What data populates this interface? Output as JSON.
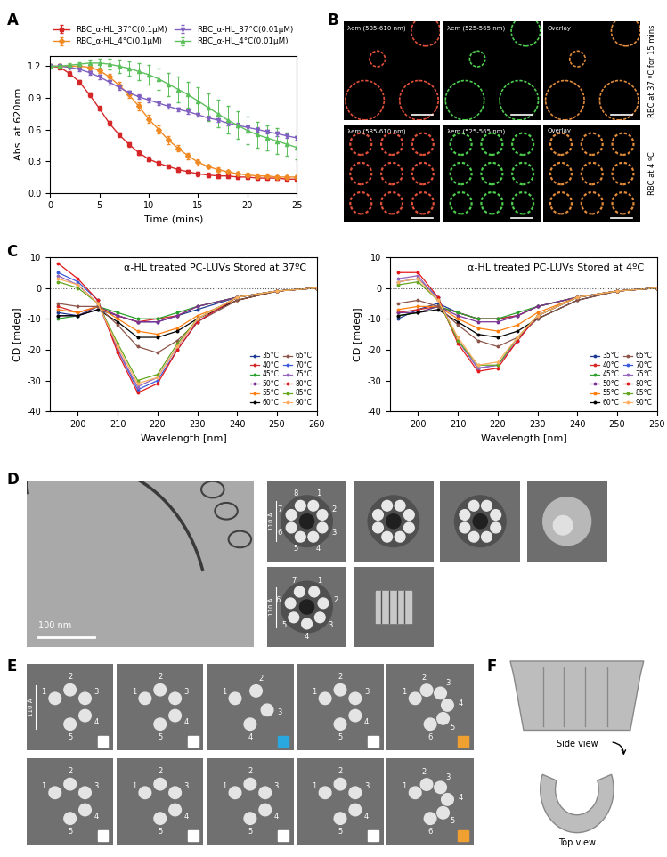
{
  "panel_labels": [
    "A",
    "B",
    "C",
    "D",
    "E",
    "F"
  ],
  "chart_data": [
    {
      "type": "line",
      "x_label": "Time (mins)",
      "y_label": "Abs. at 620nm",
      "x": [
        0,
        1,
        2,
        3,
        4,
        5,
        6,
        7,
        8,
        9,
        10,
        11,
        12,
        13,
        14,
        15,
        16,
        17,
        18,
        19,
        20,
        21,
        22,
        23,
        24,
        25
      ],
      "xlim": [
        0,
        25
      ],
      "xticks": [
        0,
        5,
        10,
        15,
        20,
        25
      ],
      "ylim": [
        0,
        1.3
      ],
      "yticks": [
        {
          "value": 0.0,
          "label": "0.0"
        },
        {
          "value": 0.3,
          "label": "0.3"
        },
        {
          "value": 0.6,
          "label": "0.6"
        },
        {
          "value": 0.9,
          "label": "0.9"
        },
        {
          "value": 1.2,
          "label": "1.2"
        }
      ],
      "legend": "upper center",
      "series": [
        {
          "name": "RBC_α-HL_37°C(0.1μM)",
          "color": "#d62728",
          "marker": "square",
          "values": [
            1.2,
            1.19,
            1.13,
            1.05,
            0.93,
            0.8,
            0.66,
            0.55,
            0.46,
            0.38,
            0.32,
            0.28,
            0.25,
            0.22,
            0.2,
            0.18,
            0.17,
            0.16,
            0.16,
            0.15,
            0.15,
            0.14,
            0.14,
            0.14,
            0.13,
            0.13
          ],
          "errors": [
            0.01,
            0.01,
            0.02,
            0.02,
            0.02,
            0.02,
            0.02,
            0.02,
            0.02,
            0.02,
            0.02,
            0.02,
            0.02,
            0.02,
            0.02,
            0.02,
            0.02,
            0.02,
            0.02,
            0.02,
            0.02,
            0.02,
            0.02,
            0.02,
            0.02,
            0.02
          ]
        },
        {
          "name": "RBC_α-HL_4°C(0.1μM)",
          "color": "#f08a24",
          "marker": "diamond",
          "values": [
            1.2,
            1.2,
            1.2,
            1.2,
            1.19,
            1.16,
            1.1,
            1.02,
            0.93,
            0.82,
            0.7,
            0.6,
            0.5,
            0.42,
            0.35,
            0.29,
            0.25,
            0.22,
            0.2,
            0.18,
            0.17,
            0.16,
            0.16,
            0.15,
            0.15,
            0.15
          ],
          "errors": [
            0.01,
            0.01,
            0.01,
            0.01,
            0.02,
            0.02,
            0.03,
            0.03,
            0.03,
            0.04,
            0.04,
            0.04,
            0.04,
            0.03,
            0.03,
            0.03,
            0.02,
            0.02,
            0.02,
            0.02,
            0.02,
            0.02,
            0.02,
            0.02,
            0.02,
            0.02
          ]
        },
        {
          "name": "RBC_α-HL_37°C(0.01μM)",
          "color": "#8060c0",
          "marker": "triangle_down",
          "values": [
            1.2,
            1.2,
            1.19,
            1.17,
            1.14,
            1.1,
            1.05,
            1.0,
            0.95,
            0.91,
            0.88,
            0.85,
            0.82,
            0.79,
            0.77,
            0.74,
            0.71,
            0.69,
            0.66,
            0.64,
            0.62,
            0.6,
            0.58,
            0.56,
            0.54,
            0.52
          ],
          "errors": [
            0.01,
            0.01,
            0.01,
            0.02,
            0.02,
            0.02,
            0.02,
            0.02,
            0.02,
            0.02,
            0.02,
            0.02,
            0.02,
            0.02,
            0.02,
            0.02,
            0.02,
            0.02,
            0.02,
            0.02,
            0.02,
            0.02,
            0.02,
            0.02,
            0.02,
            0.02
          ]
        },
        {
          "name": "RBC_α-HL_4°C(0.01μM)",
          "color": "#5cc05c",
          "marker": "triangle_up",
          "values": [
            1.2,
            1.2,
            1.21,
            1.22,
            1.23,
            1.23,
            1.22,
            1.2,
            1.18,
            1.15,
            1.12,
            1.08,
            1.03,
            0.98,
            0.93,
            0.87,
            0.81,
            0.75,
            0.69,
            0.64,
            0.59,
            0.55,
            0.52,
            0.49,
            0.46,
            0.43
          ],
          "errors": [
            0.01,
            0.01,
            0.02,
            0.02,
            0.03,
            0.04,
            0.05,
            0.06,
            0.07,
            0.08,
            0.09,
            0.1,
            0.11,
            0.12,
            0.12,
            0.13,
            0.13,
            0.13,
            0.13,
            0.13,
            0.13,
            0.12,
            0.12,
            0.12,
            0.11,
            0.11
          ]
        }
      ]
    },
    {
      "type": "line",
      "annotation": "α-HL treated PC-LUVs Stored at 37ºC",
      "x_label": "Wavelength [nm]",
      "y_label": "CD [mdeg]",
      "x": [
        195,
        200,
        205,
        210,
        215,
        220,
        225,
        230,
        240,
        250,
        260
      ],
      "xlim": [
        193,
        260
      ],
      "xticks": [
        200,
        210,
        220,
        230,
        240,
        250,
        260
      ],
      "ylim": [
        -40,
        10
      ],
      "yticks": [
        -40,
        -30,
        -20,
        -10,
        0,
        10
      ],
      "reference_line": 0,
      "legend": "lower right",
      "series": [
        {
          "name": "35°C",
          "color": "#1f3a93",
          "marker": "circle",
          "values": [
            -8,
            -9,
            -7,
            -9,
            -11,
            -11,
            -9,
            -7,
            -3,
            -1,
            0
          ]
        },
        {
          "name": "40°C",
          "color": "#d62728",
          "marker": "circle",
          "values": [
            -6,
            -8,
            -6,
            -9,
            -11,
            -10,
            -9,
            -6,
            -3,
            -1,
            0
          ]
        },
        {
          "name": "45°C",
          "color": "#2ca02c",
          "marker": "circle",
          "values": [
            -10,
            -9,
            -6,
            -8,
            -10,
            -10,
            -8,
            -6,
            -3,
            -1,
            0
          ]
        },
        {
          "name": "50°C",
          "color": "#7b3294",
          "marker": "circle",
          "values": [
            -9,
            -9,
            -6,
            -9,
            -11,
            -11,
            -9,
            -6,
            -3,
            -1,
            0
          ]
        },
        {
          "name": "55°C",
          "color": "#ff7f0e",
          "marker": "circle",
          "values": [
            -7,
            -8,
            -6,
            -10,
            -14,
            -15,
            -13,
            -9,
            -4,
            -1,
            0
          ]
        },
        {
          "name": "60°C",
          "color": "#000000",
          "marker": "circle",
          "values": [
            -9,
            -9,
            -7,
            -11,
            -16,
            -16,
            -14,
            -10,
            -4,
            -1,
            0
          ]
        },
        {
          "name": "65°C",
          "color": "#8c564b",
          "marker": "circle",
          "values": [
            -5,
            -6,
            -6,
            -12,
            -19,
            -21,
            -17,
            -11,
            -4,
            -1,
            0
          ]
        },
        {
          "name": "70°C",
          "color": "#3b5bdb",
          "marker": "circle",
          "values": [
            5,
            2,
            -4,
            -20,
            -33,
            -30,
            -20,
            -11,
            -3,
            -1,
            0
          ]
        },
        {
          "name": "75°C",
          "color": "#9467bd",
          "marker": "circle",
          "values": [
            4,
            1,
            -5,
            -20,
            -32,
            -29,
            -19,
            -10,
            -3,
            -1,
            0
          ]
        },
        {
          "name": "80°C",
          "color": "#e31a1c",
          "marker": "circle",
          "values": [
            8,
            3,
            -4,
            -21,
            -34,
            -31,
            -20,
            -11,
            -3,
            -1,
            0
          ]
        },
        {
          "name": "85°C",
          "color": "#66a61e",
          "marker": "circle",
          "values": [
            2,
            0,
            -5,
            -18,
            -30,
            -28,
            -18,
            -10,
            -3,
            -1,
            0
          ]
        },
        {
          "name": "90°C",
          "color": "#fdae61",
          "marker": "circle",
          "values": [
            3,
            1,
            -5,
            -19,
            -31,
            -29,
            -19,
            -10,
            -3,
            -1,
            0
          ]
        }
      ]
    },
    {
      "type": "line",
      "annotation": "α-HL treated PC-LUVs Stored at 4ºC",
      "x_label": "Wavelength [nm]",
      "y_label": "CD [mdeg]",
      "x": [
        195,
        200,
        205,
        210,
        215,
        220,
        225,
        230,
        240,
        250,
        260
      ],
      "xlim": [
        193,
        260
      ],
      "xticks": [
        200,
        210,
        220,
        230,
        240,
        250,
        260
      ],
      "ylim": [
        -40,
        10
      ],
      "yticks": [
        -40,
        -30,
        -20,
        -10,
        0,
        10
      ],
      "reference_line": 0,
      "legend": "lower right",
      "series": [
        {
          "name": "35°C",
          "color": "#1f3a93",
          "marker": "circle",
          "values": [
            -10,
            -7,
            -5,
            -8,
            -10,
            -10,
            -9,
            -6,
            -3,
            -1,
            0
          ]
        },
        {
          "name": "40°C",
          "color": "#d62728",
          "marker": "circle",
          "values": [
            -8,
            -7,
            -6,
            -8,
            -10,
            -10,
            -9,
            -6,
            -3,
            -1,
            0
          ]
        },
        {
          "name": "45°C",
          "color": "#2ca02c",
          "marker": "circle",
          "values": [
            -9,
            -8,
            -6,
            -8,
            -10,
            -10,
            -8,
            -6,
            -3,
            -1,
            0
          ]
        },
        {
          "name": "50°C",
          "color": "#7b3294",
          "marker": "circle",
          "values": [
            -8,
            -8,
            -6,
            -9,
            -11,
            -11,
            -9,
            -6,
            -3,
            -1,
            0
          ]
        },
        {
          "name": "55°C",
          "color": "#ff7f0e",
          "marker": "circle",
          "values": [
            -7,
            -6,
            -6,
            -10,
            -13,
            -14,
            -12,
            -8,
            -3,
            -1,
            0
          ]
        },
        {
          "name": "60°C",
          "color": "#000000",
          "marker": "circle",
          "values": [
            -9,
            -8,
            -7,
            -11,
            -15,
            -16,
            -14,
            -10,
            -4,
            -1,
            0
          ]
        },
        {
          "name": "65°C",
          "color": "#8c564b",
          "marker": "circle",
          "values": [
            -5,
            -4,
            -6,
            -12,
            -17,
            -19,
            -16,
            -10,
            -4,
            -1,
            0
          ]
        },
        {
          "name": "70°C",
          "color": "#3b5bdb",
          "marker": "circle",
          "values": [
            2,
            3,
            -3,
            -17,
            -26,
            -25,
            -17,
            -9,
            -3,
            -1,
            0
          ]
        },
        {
          "name": "75°C",
          "color": "#9467bd",
          "marker": "circle",
          "values": [
            3,
            4,
            -4,
            -17,
            -26,
            -25,
            -17,
            -9,
            -3,
            -1,
            0
          ]
        },
        {
          "name": "80°C",
          "color": "#e31a1c",
          "marker": "circle",
          "values": [
            5,
            5,
            -3,
            -18,
            -27,
            -26,
            -17,
            -9,
            -3,
            -1,
            0
          ]
        },
        {
          "name": "85°C",
          "color": "#66a61e",
          "marker": "circle",
          "values": [
            1,
            2,
            -4,
            -17,
            -25,
            -25,
            -16,
            -9,
            -3,
            -1,
            0
          ]
        },
        {
          "name": "90°C",
          "color": "#fdae61",
          "marker": "circle",
          "values": [
            2,
            3,
            -4,
            -16,
            -25,
            -24,
            -16,
            -9,
            -3,
            -1,
            0
          ]
        }
      ]
    }
  ],
  "fluorescence": {
    "channel_titles": [
      "λem (585-610 nm)",
      "λem (525-565 nm)",
      "Overlay"
    ],
    "channel_colors": [
      "#e0503a",
      "#4ccd4c",
      "#e08a3a"
    ],
    "row_labels": [
      "RBC at 37 ºC for 15 mins",
      "RBC at 4 ºC"
    ]
  },
  "cryo_em": {
    "micrograph_scale_bar": "100 nm",
    "class_averages": [
      {
        "scale_bar": "110 Å",
        "subunits": [
          1,
          2,
          3,
          4,
          5,
          6,
          7,
          8
        ]
      },
      {
        "scale_bar": "110 Å",
        "subunits": [
          1,
          2,
          3,
          4,
          5,
          6,
          7
        ]
      }
    ],
    "partial_classes": [
      {
        "scale_bar": "110 Å",
        "subunits": [
          1,
          2,
          3,
          4,
          5
        ],
        "tag_color": "#ffffff"
      },
      {
        "subunits": [
          1,
          2,
          3,
          4,
          5
        ],
        "tag_color": "#ffffff"
      },
      {
        "subunits": [
          1,
          2,
          3,
          4
        ],
        "tag_color": "#29a8e0"
      },
      {
        "subunits": [
          1,
          2,
          3,
          4,
          5
        ],
        "tag_color": "#ffffff"
      },
      {
        "subunits": [
          1,
          2,
          3,
          4,
          5,
          6
        ],
        "tag_color": "#f0a030"
      },
      {
        "subunits": [
          1,
          2,
          3,
          4,
          5
        ],
        "tag_color": "#ffffff"
      },
      {
        "subunits": [
          1,
          2,
          3,
          4,
          5
        ],
        "tag_color": "#ffffff"
      },
      {
        "subunits": [
          1,
          2,
          3,
          4,
          5
        ],
        "tag_color": "#ffffff"
      },
      {
        "subunits": [
          1,
          2,
          3,
          4,
          5
        ],
        "tag_color": "#ffffff"
      },
      {
        "subunits": [
          1,
          2,
          3,
          4,
          5,
          6
        ],
        "tag_color": "#f0a030"
      }
    ]
  },
  "model": {
    "views": [
      "Side view",
      "Top view"
    ]
  }
}
